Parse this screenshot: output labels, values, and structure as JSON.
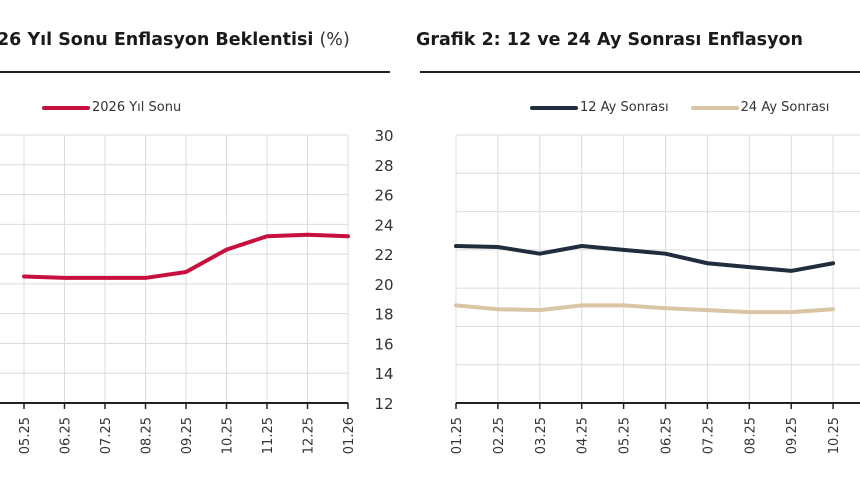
{
  "chart_data": [
    {
      "type": "line",
      "title": "26 Yıl Sonu Enflasyon Beklentisi",
      "title_unit": "(%)",
      "categories": [
        "05.25",
        "06.25",
        "07.25",
        "08.25",
        "09.25",
        "10.25",
        "11.25",
        "12.25",
        "01.26"
      ],
      "series": [
        {
          "name": "2026 Yıl Sonu",
          "color": "#c8103e",
          "values": [
            20.5,
            20.4,
            20.4,
            20.4,
            20.8,
            22.3,
            23.2,
            23.3,
            23.2
          ]
        }
      ],
      "ylim": [
        12,
        30
      ],
      "yticks": [
        "12",
        "14",
        "16",
        "18",
        "20",
        "22",
        "24",
        "26",
        "28",
        "30"
      ],
      "y_axis_side": "right",
      "grid": true,
      "legend": "top"
    },
    {
      "type": "line",
      "title": "Grafik 2: 12 ve 24 Ay Sonrası Enflasyon",
      "categories": [
        "01.25",
        "02.25",
        "03.25",
        "04.25",
        "05.25",
        "06.25",
        "07.25",
        "08.25",
        "09.25",
        "10.25"
      ],
      "series": [
        {
          "name": "12 Ay Sonrası",
          "color": "#1f2d3d",
          "values": [
            22.2,
            22.15,
            21.8,
            22.2,
            22.0,
            21.8,
            21.3,
            21.1,
            20.9,
            21.3
          ]
        },
        {
          "name": "24 Ay Sonrası",
          "color": "#d9c4a5",
          "values": [
            19.1,
            18.9,
            18.85,
            19.1,
            19.1,
            18.95,
            18.85,
            18.75,
            18.75,
            18.9
          ]
        }
      ],
      "ylim": [
        14,
        28
      ],
      "grid": true,
      "legend": "top"
    }
  ]
}
